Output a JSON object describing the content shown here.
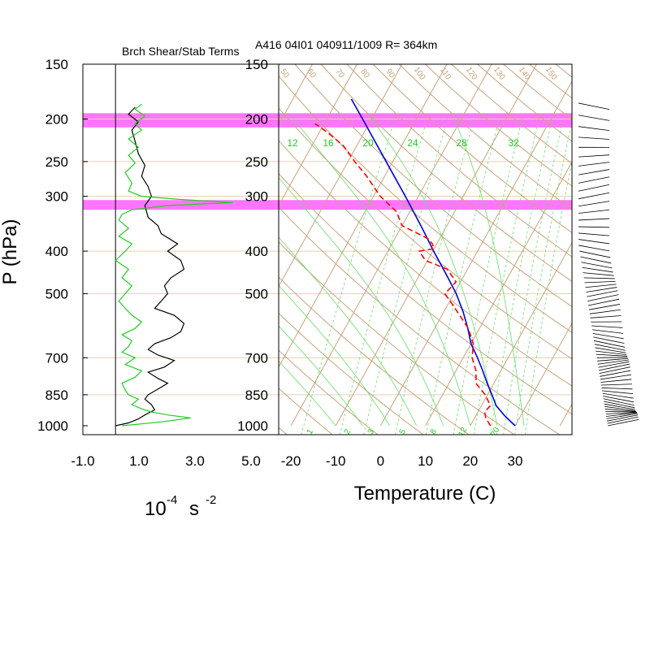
{
  "title_left": "Brch Shear/Stab Terms",
  "title_right": "A416 04I01 040911/1009 R= 364km",
  "y_axis_label": "P (hPa)",
  "left_xlabel_main": "10",
  "left_xlabel_exp": "-4",
  "left_xlabel_s": "s",
  "left_xlabel_exp2": "-2",
  "right_xlabel": "Temperature (C)",
  "colors": {
    "highlight": "#ff66ff",
    "shear_line": "#000000",
    "stab_line": "#22cc22",
    "temperature": "#0000dd",
    "dewpoint": "#ff0000",
    "dry_adiabat_grid": "#c8a37c",
    "mixing_ratio_grid": "#66dd66",
    "pressure_grid": "#e6cfb3"
  },
  "chart_data": [
    {
      "type": "line",
      "title": "Brch Shear/Stab Terms",
      "ylabel": "P (hPa)",
      "xlabel": "10^-4 s^-2",
      "y_scale": "log",
      "y_reversed": true,
      "ylim": [
        1000,
        150
      ],
      "xlim": [
        -1.0,
        5.0
      ],
      "x_ticks": [
        "-1.0",
        "1.0",
        "3.0",
        "5.0"
      ],
      "y_ticks": [
        150,
        200,
        250,
        300,
        400,
        500,
        700,
        850,
        1000
      ],
      "highlight_bands_hPa": [
        [
          194,
          209
        ],
        [
          306,
          322
        ]
      ],
      "series": [
        {
          "color": "#000000",
          "points": [
            [
              1000,
              0.0
            ],
            [
              985,
              0.4
            ],
            [
              965,
              0.7
            ],
            [
              945,
              0.9
            ],
            [
              920,
              1.2
            ],
            [
              895,
              1.1
            ],
            [
              870,
              0.9
            ],
            [
              850,
              1.0
            ],
            [
              825,
              1.3
            ],
            [
              800,
              1.6
            ],
            [
              780,
              1.3
            ],
            [
              755,
              1.0
            ],
            [
              735,
              1.5
            ],
            [
              710,
              1.8
            ],
            [
              690,
              1.3
            ],
            [
              670,
              1.0
            ],
            [
              650,
              1.2
            ],
            [
              630,
              1.7
            ],
            [
              610,
              2.0
            ],
            [
              585,
              2.1
            ],
            [
              560,
              1.8
            ],
            [
              540,
              1.2
            ],
            [
              520,
              1.4
            ],
            [
              500,
              1.6
            ],
            [
              480,
              1.5
            ],
            [
              460,
              1.7
            ],
            [
              440,
              2.1
            ],
            [
              420,
              2.0
            ],
            [
              400,
              1.6
            ],
            [
              385,
              1.9
            ],
            [
              365,
              1.4
            ],
            [
              350,
              1.3
            ],
            [
              335,
              1.0
            ],
            [
              315,
              0.9
            ],
            [
              300,
              1.1
            ],
            [
              285,
              1.0
            ],
            [
              270,
              0.8
            ],
            [
              255,
              0.9
            ],
            [
              240,
              0.7
            ],
            [
              225,
              0.6
            ],
            [
              212,
              0.5
            ],
            [
              203,
              0.7
            ],
            [
              195,
              0.4
            ],
            [
              188,
              0.6
            ]
          ]
        },
        {
          "color": "#22cc22",
          "points": [
            [
              1000,
              0.2
            ],
            [
              980,
              1.4
            ],
            [
              960,
              2.3
            ],
            [
              945,
              1.6
            ],
            [
              930,
              1.1
            ],
            [
              915,
              0.8
            ],
            [
              895,
              0.5
            ],
            [
              870,
              0.7
            ],
            [
              850,
              0.4
            ],
            [
              830,
              0.3
            ],
            [
              800,
              0.2
            ],
            [
              775,
              0.6
            ],
            [
              750,
              0.8
            ],
            [
              725,
              0.3
            ],
            [
              700,
              0.6
            ],
            [
              680,
              0.2
            ],
            [
              660,
              0.4
            ],
            [
              640,
              0.5
            ],
            [
              620,
              0.2
            ],
            [
              600,
              0.6
            ],
            [
              580,
              0.8
            ],
            [
              560,
              0.5
            ],
            [
              540,
              0.3
            ],
            [
              520,
              0.1
            ],
            [
              500,
              0.3
            ],
            [
              480,
              0.5
            ],
            [
              460,
              0.2
            ],
            [
              440,
              0.4
            ],
            [
              420,
              0.0
            ],
            [
              400,
              0.3
            ],
            [
              385,
              0.5
            ],
            [
              370,
              0.1
            ],
            [
              355,
              0.4
            ],
            [
              340,
              0.1
            ],
            [
              330,
              0.2
            ],
            [
              322,
              0.5
            ],
            [
              315,
              1.6
            ],
            [
              310,
              3.6
            ],
            [
              305,
              2.0
            ],
            [
              300,
              0.8
            ],
            [
              292,
              0.4
            ],
            [
              280,
              0.5
            ],
            [
              265,
              0.3
            ],
            [
              252,
              0.6
            ],
            [
              242,
              0.4
            ],
            [
              232,
              0.7
            ],
            [
              222,
              0.4
            ],
            [
              212,
              0.8
            ],
            [
              205,
              0.6
            ],
            [
              197,
              0.9
            ],
            [
              190,
              0.6
            ],
            [
              185,
              0.8
            ]
          ]
        }
      ]
    },
    {
      "type": "line",
      "subtype": "skew-t",
      "title": "A416 04I01 040911/1009 R= 364km",
      "xlabel": "Temperature (C)",
      "ylabel": "P (hPa)",
      "y_scale": "log",
      "y_reversed": true,
      "ylim": [
        1000,
        150
      ],
      "xlim": [
        -25,
        40
      ],
      "x_ticks": [
        -20,
        -10,
        0,
        10,
        20,
        30
      ],
      "y_ticks": [
        150,
        200,
        250,
        300,
        400,
        500,
        700,
        850,
        1000
      ],
      "highlight_bands_hPa": [
        [
          194,
          209
        ],
        [
          306,
          322
        ]
      ],
      "mixing_ratio_top_labels": [
        "12",
        "16",
        "20",
        "24",
        "28",
        "32"
      ],
      "mixing_ratio_bottom_labels": [
        "1",
        "2",
        "3",
        "5",
        "8",
        "12",
        "20"
      ],
      "dry_adiabat_labels": [
        "50",
        "60",
        "70",
        "80",
        "90",
        "100",
        "110",
        "120",
        "130",
        "140",
        "150"
      ],
      "series": [
        {
          "color": "#0000dd",
          "style": "solid",
          "points": [
            [
              1000,
              30.0
            ],
            [
              950,
              26.5
            ],
            [
              900,
              23.3
            ],
            [
              850,
              21.0
            ],
            [
              800,
              18.5
            ],
            [
              750,
              16.0
            ],
            [
              700,
              13.2
            ],
            [
              650,
              10.0
            ],
            [
              600,
              7.4
            ],
            [
              550,
              4.3
            ],
            [
              500,
              0.5
            ],
            [
              450,
              -4.3
            ],
            [
              400,
              -9.8
            ],
            [
              350,
              -15.8
            ],
            [
              300,
              -22.9
            ],
            [
              250,
              -31.5
            ],
            [
              200,
              -42.0
            ],
            [
              180,
              -47.0
            ]
          ]
        },
        {
          "color": "#ff0000",
          "style": "dashed",
          "points": [
            [
              1000,
              24.5
            ],
            [
              960,
              22.5
            ],
            [
              930,
              21.5
            ],
            [
              900,
              22.0
            ],
            [
              850,
              19.5
            ],
            [
              800,
              16.0
            ],
            [
              750,
              14.5
            ],
            [
              700,
              12.0
            ],
            [
              650,
              10.5
            ],
            [
              600,
              7.5
            ],
            [
              550,
              3.0
            ],
            [
              500,
              -2.0
            ],
            [
              470,
              -1.0
            ],
            [
              440,
              -4.5
            ],
            [
              420,
              -10.5
            ],
            [
              400,
              -13.0
            ],
            [
              395,
              -10.0
            ],
            [
              385,
              -11.0
            ],
            [
              375,
              -12.5
            ],
            [
              350,
              -20.0
            ],
            [
              325,
              -23.0
            ],
            [
              300,
              -28.5
            ],
            [
              270,
              -34.0
            ],
            [
              250,
              -38.5
            ],
            [
              230,
              -43.0
            ],
            [
              215,
              -48.0
            ],
            [
              205,
              -52.0
            ]
          ]
        }
      ]
    }
  ]
}
